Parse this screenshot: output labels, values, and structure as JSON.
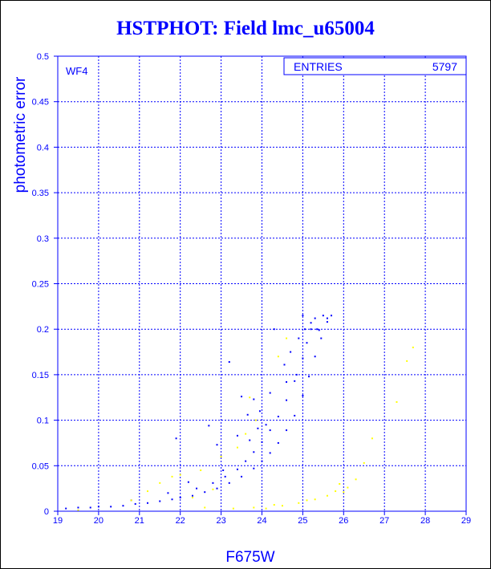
{
  "title": "HSTPHOT: Field lmc_u65004",
  "chart_data": {
    "type": "scatter",
    "title": "HSTPHOT: Field lmc_u65004",
    "xlabel": "F675W",
    "ylabel": "photometric error",
    "xlim": [
      19,
      29
    ],
    "ylim": [
      0,
      0.5
    ],
    "x_ticks": [
      "19",
      "20",
      "21",
      "22",
      "23",
      "24",
      "25",
      "26",
      "27",
      "28",
      "29"
    ],
    "y_ticks": [
      "0",
      "0.05",
      "0.1",
      "0.15",
      "0.2",
      "0.25",
      "0.3",
      "0.35",
      "0.4",
      "0.45",
      "0.5"
    ],
    "grid": true,
    "panel_label": "WF4",
    "stats_box": {
      "label": "ENTRIES",
      "value": "5797"
    },
    "colors": {
      "accent": "#0000ff",
      "secondary": "#ffff00",
      "background": "#ffffff"
    },
    "series": [
      {
        "color": "#0000ff",
        "points": [
          [
            19.2,
            0.003
          ],
          [
            19.5,
            0.004
          ],
          [
            19.8,
            0.004
          ],
          [
            20.0,
            0.005
          ],
          [
            20.3,
            0.005
          ],
          [
            20.6,
            0.006
          ],
          [
            20.9,
            0.008
          ],
          [
            21.2,
            0.009
          ],
          [
            21.5,
            0.011
          ],
          [
            21.8,
            0.013
          ],
          [
            22.0,
            0.015
          ],
          [
            22.3,
            0.017
          ],
          [
            22.6,
            0.021
          ],
          [
            22.9,
            0.025
          ],
          [
            23.2,
            0.031
          ],
          [
            23.5,
            0.038
          ],
          [
            23.8,
            0.047
          ],
          [
            24.0,
            0.055
          ],
          [
            24.2,
            0.064
          ],
          [
            24.4,
            0.075
          ],
          [
            24.6,
            0.089
          ],
          [
            24.8,
            0.105
          ],
          [
            25.0,
            0.127
          ],
          [
            25.15,
            0.148
          ],
          [
            25.3,
            0.17
          ],
          [
            25.45,
            0.19
          ],
          [
            25.6,
            0.208
          ],
          [
            25.7,
            0.215
          ],
          [
            22.4,
            0.025
          ],
          [
            22.8,
            0.031
          ],
          [
            23.1,
            0.038
          ],
          [
            23.4,
            0.046
          ],
          [
            23.6,
            0.055
          ],
          [
            23.8,
            0.065
          ],
          [
            24.0,
            0.076
          ],
          [
            24.2,
            0.089
          ],
          [
            24.4,
            0.104
          ],
          [
            24.6,
            0.122
          ],
          [
            24.8,
            0.143
          ],
          [
            25.0,
            0.168
          ],
          [
            25.1,
            0.185
          ],
          [
            25.2,
            0.2
          ],
          [
            25.3,
            0.212
          ],
          [
            25.5,
            0.215
          ],
          [
            25.0,
            0.215
          ],
          [
            25.2,
            0.207
          ],
          [
            25.4,
            0.199
          ],
          [
            24.9,
            0.19
          ],
          [
            25.35,
            0.2
          ],
          [
            25.6,
            0.212
          ],
          [
            21.9,
            0.08
          ],
          [
            22.7,
            0.094
          ],
          [
            22.9,
            0.073
          ],
          [
            23.2,
            0.164
          ],
          [
            23.4,
            0.083
          ],
          [
            23.5,
            0.126
          ],
          [
            23.65,
            0.106
          ],
          [
            23.8,
            0.123
          ],
          [
            23.9,
            0.091
          ],
          [
            24.2,
            0.13
          ],
          [
            24.3,
            0.2
          ],
          [
            23.95,
            0.11
          ],
          [
            24.1,
            0.095
          ],
          [
            23.7,
            0.078
          ],
          [
            22.2,
            0.032
          ],
          [
            21.7,
            0.02
          ],
          [
            20.8,
            0.012
          ],
          [
            23.05,
            0.045
          ],
          [
            24.55,
            0.161
          ],
          [
            24.7,
            0.175
          ],
          [
            24.85,
            0.15
          ],
          [
            24.6,
            0.142
          ],
          [
            25.05,
            0.2
          ]
        ]
      },
      {
        "color": "#ffff00",
        "points": [
          [
            19.5,
            0.001
          ],
          [
            20.8,
            0.012
          ],
          [
            21.2,
            0.022
          ],
          [
            21.5,
            0.031
          ],
          [
            21.8,
            0.038
          ],
          [
            22.0,
            0.04
          ],
          [
            22.5,
            0.045
          ],
          [
            23.0,
            0.06
          ],
          [
            23.4,
            0.07
          ],
          [
            22.8,
            0.024
          ],
          [
            22.3,
            0.015
          ],
          [
            23.7,
            0.125
          ],
          [
            24.4,
            0.17
          ],
          [
            24.6,
            0.19
          ],
          [
            23.85,
            0.1
          ],
          [
            23.6,
            0.085
          ],
          [
            24.1,
            0.003
          ],
          [
            24.5,
            0.006
          ],
          [
            24.9,
            0.009
          ],
          [
            25.3,
            0.013
          ],
          [
            25.6,
            0.017
          ],
          [
            25.8,
            0.022
          ],
          [
            26.1,
            0.026
          ],
          [
            26.3,
            0.035
          ],
          [
            26.5,
            0.053
          ],
          [
            26.7,
            0.08
          ],
          [
            27.3,
            0.12
          ],
          [
            27.55,
            0.165
          ],
          [
            27.7,
            0.18
          ],
          [
            23.3,
            0.003
          ],
          [
            23.8,
            0.004
          ],
          [
            25.1,
            0.012
          ],
          [
            25.9,
            0.03
          ],
          [
            26.0,
            0.021
          ],
          [
            24.3,
            0.007
          ],
          [
            22.6,
            0.004
          ]
        ]
      }
    ]
  }
}
